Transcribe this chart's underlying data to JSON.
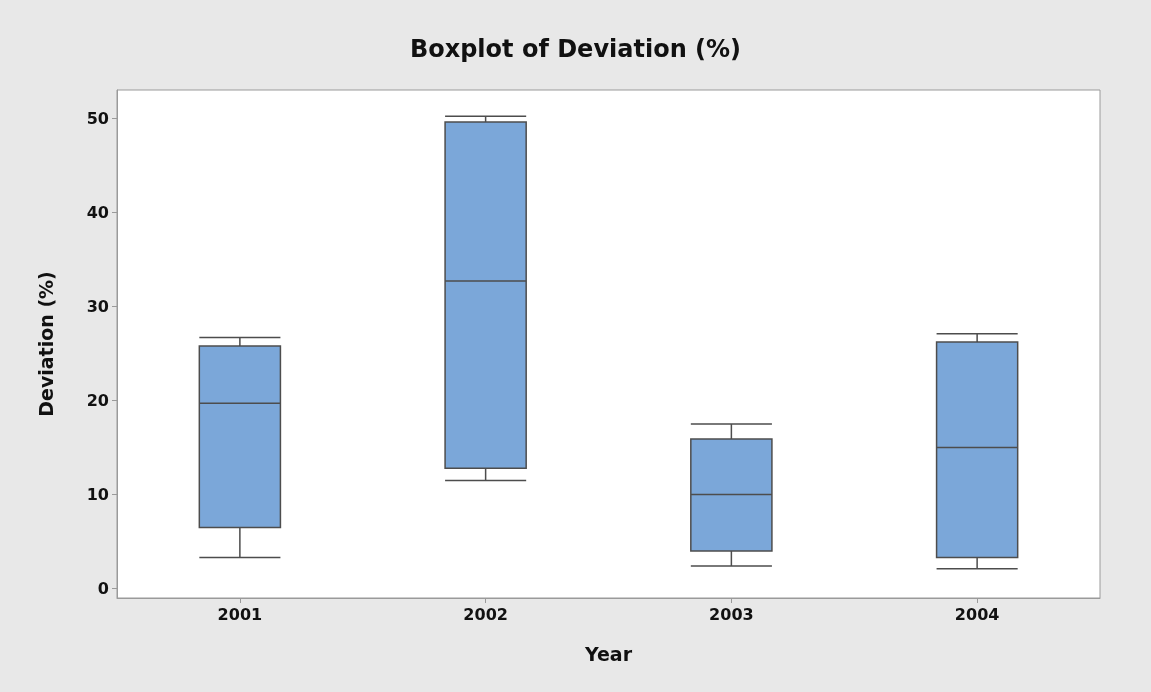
{
  "chart_data": {
    "type": "box",
    "title": "Boxplot of Deviation (%)",
    "xlabel": "Year",
    "ylabel": "Deviation (%)",
    "categories": [
      "2001",
      "2002",
      "2003",
      "2004"
    ],
    "color": "#7ba7d9",
    "boxes": [
      {
        "low": 3.3,
        "q1": 6.5,
        "median": 19.7,
        "q3": 25.8,
        "high": 26.7
      },
      {
        "low": 11.5,
        "q1": 12.8,
        "median": 32.7,
        "q3": 49.6,
        "high": 50.2
      },
      {
        "low": 2.4,
        "q1": 4.0,
        "median": 10.0,
        "q3": 15.9,
        "high": 17.5
      },
      {
        "low": 2.1,
        "q1": 3.3,
        "median": 15.0,
        "q3": 26.2,
        "high": 27.1
      }
    ],
    "ylim": [
      -1,
      53
    ],
    "yticks": [
      0,
      10,
      20,
      30,
      40,
      50
    ],
    "grid": false
  }
}
